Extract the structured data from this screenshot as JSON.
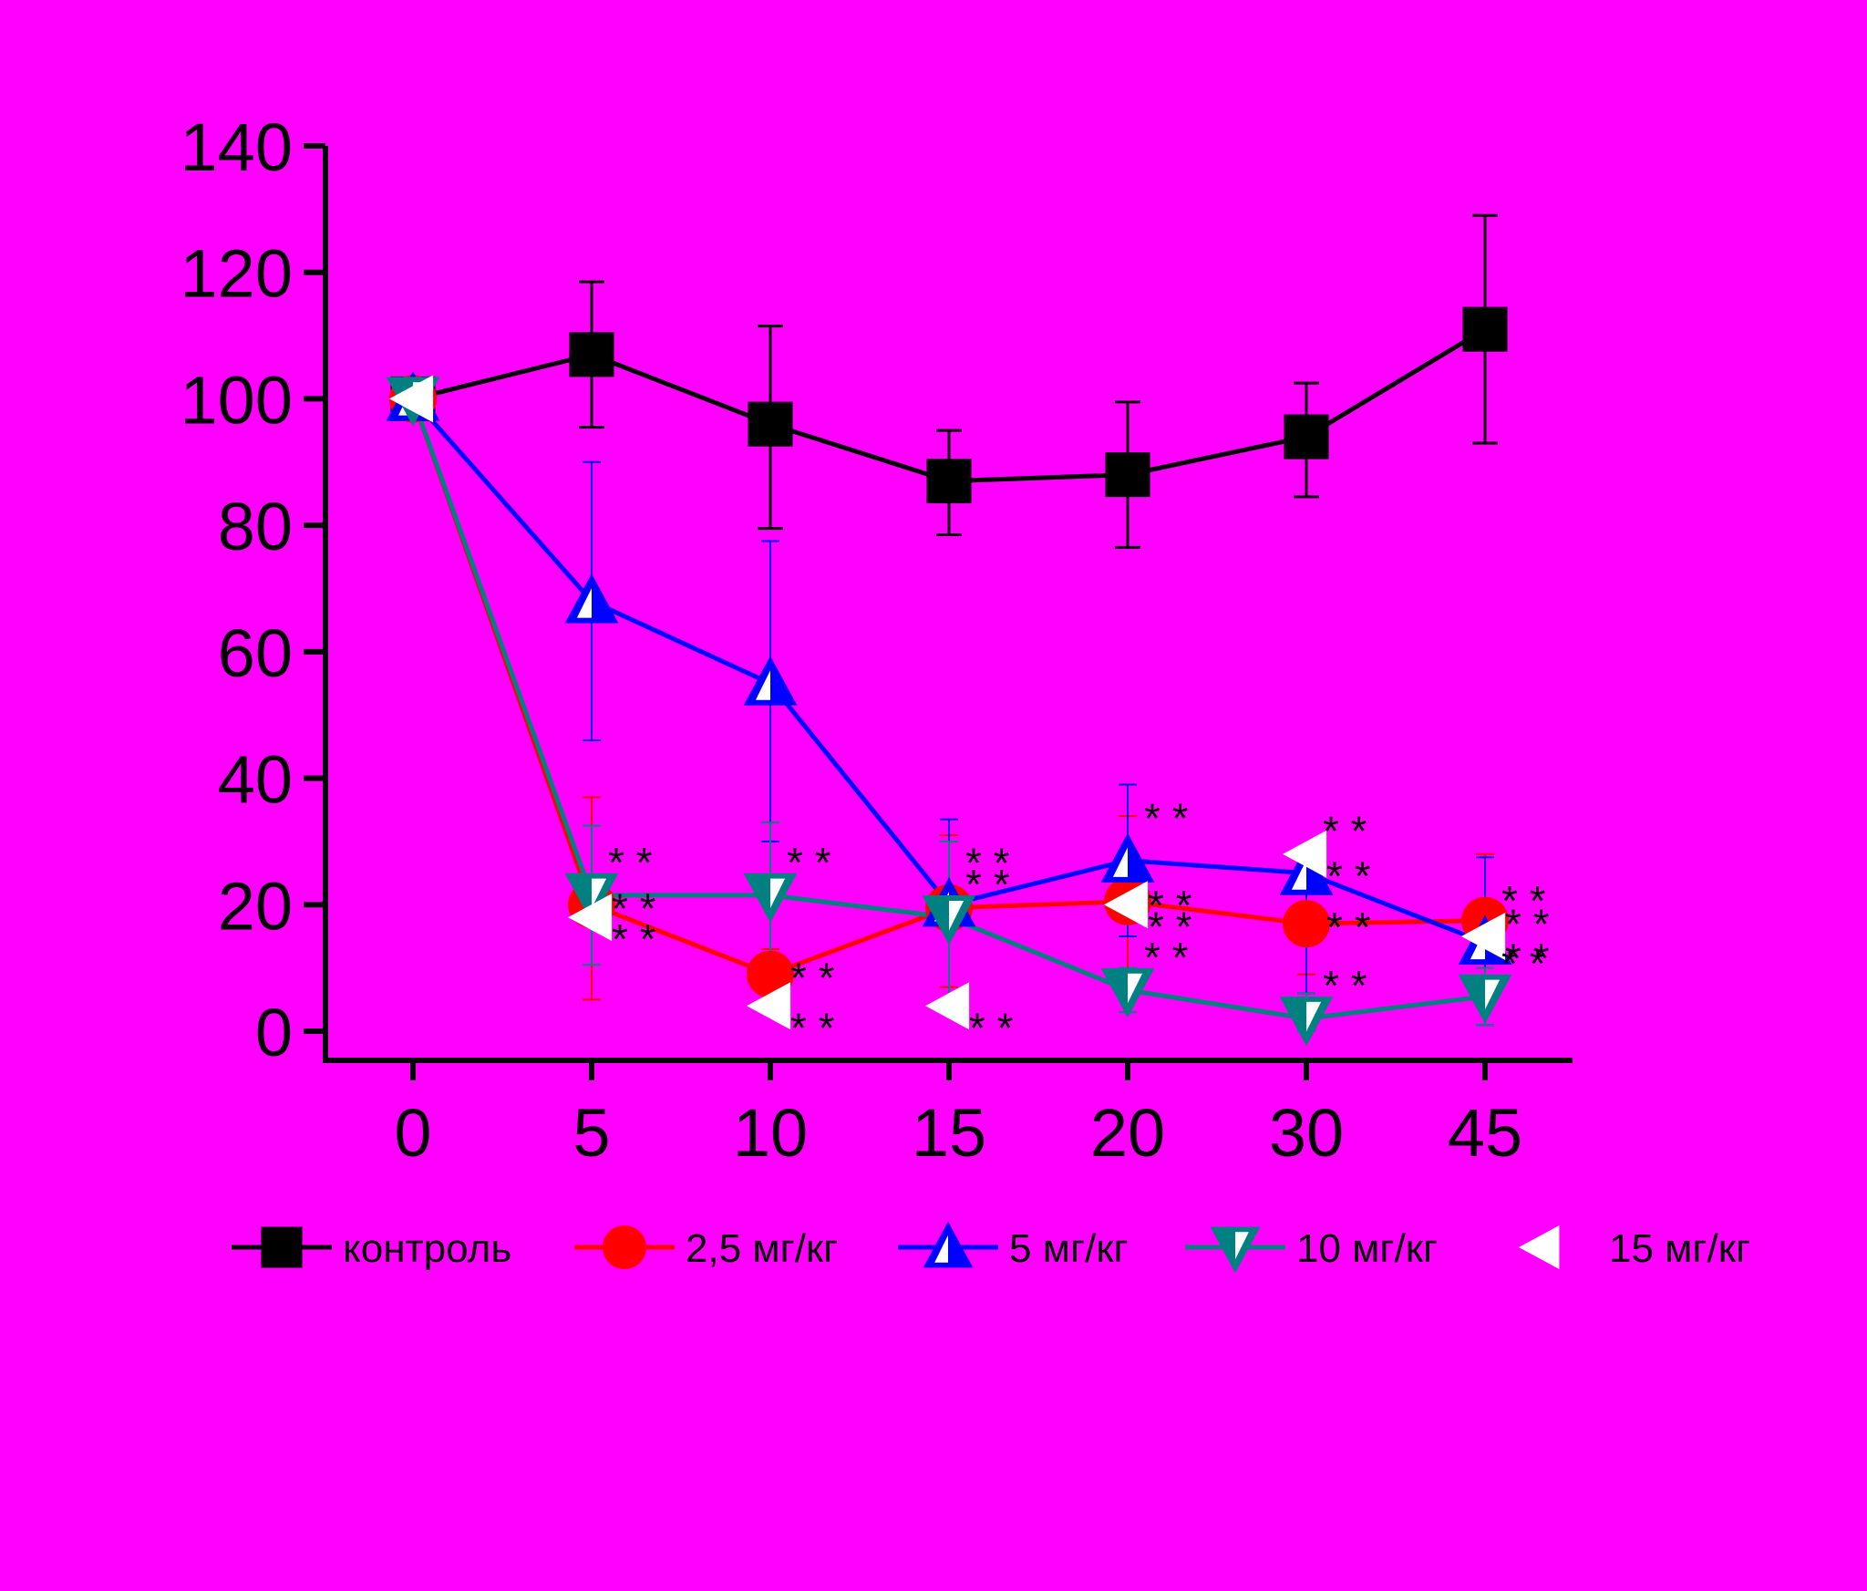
{
  "colors": {
    "background": "#ff00ff",
    "axis": "#000000",
    "control": "#000000",
    "dose_2_5": "#ff0000",
    "dose_5": "#0000ff",
    "dose_10": "#008080",
    "dose_15": "#ffffff"
  },
  "chart_data": {
    "type": "line",
    "title": "",
    "xlabel": "",
    "ylabel": "",
    "categories": [
      "0",
      "5",
      "10",
      "15",
      "20",
      "30",
      "45"
    ],
    "ylim": [
      0,
      140
    ],
    "yticks": [
      0,
      20,
      40,
      60,
      80,
      100,
      120,
      140
    ],
    "grid": false,
    "legend_position": "bottom",
    "significance_symbol": "* *",
    "series": [
      {
        "name": "контроль",
        "color": "#000000",
        "marker": "square",
        "values": [
          100,
          107,
          96,
          87,
          88,
          94,
          111
        ],
        "err_hi": [
          0,
          118.5,
          111.5,
          95,
          99.5,
          102.5,
          129
        ],
        "err_lo": [
          0,
          95.5,
          79.5,
          78.5,
          76.5,
          84.5,
          93
        ],
        "significant": [
          false,
          false,
          false,
          false,
          false,
          false,
          false
        ]
      },
      {
        "name": "2,5 мг/кг",
        "color": "#ff0000",
        "marker": "circle",
        "values": [
          100,
          20,
          9,
          19.5,
          20.5,
          17,
          17.5
        ],
        "err_hi": [
          0,
          37,
          13,
          31,
          34,
          25,
          28
        ],
        "err_lo": [
          0,
          5,
          4,
          7,
          7,
          9,
          7
        ],
        "significant": [
          false,
          true,
          true,
          false,
          true,
          true,
          true
        ]
      },
      {
        "name": "5 мг/кг",
        "color": "#0000ff",
        "marker": "triangle-up",
        "values": [
          100,
          68,
          55,
          20,
          27,
          25,
          14
        ],
        "err_hi": [
          0,
          90,
          77.5,
          33.5,
          39,
          25,
          27.5
        ],
        "err_lo": [
          0,
          46,
          30,
          5,
          15,
          6,
          1
        ],
        "significant": [
          false,
          false,
          false,
          true,
          true,
          true,
          true
        ]
      },
      {
        "name": "10 мг/кг",
        "color": "#008080",
        "marker": "triangle-down",
        "values": [
          100,
          21.5,
          21.5,
          18,
          6.5,
          2,
          5.5
        ],
        "err_hi": [
          0,
          32.5,
          33,
          30,
          10,
          6,
          10
        ],
        "err_lo": [
          0,
          10.5,
          12,
          4,
          3,
          0,
          1
        ],
        "significant": [
          false,
          true,
          true,
          true,
          true,
          true,
          true
        ]
      },
      {
        "name": "15 мг/кг",
        "color": "#ffffff",
        "marker": "triangle-left",
        "values": [
          100,
          18,
          4,
          4,
          20,
          28,
          15
        ],
        "err_hi": [
          0,
          0,
          0,
          0,
          0,
          0,
          0
        ],
        "err_lo": [
          0,
          0,
          0,
          0,
          0,
          0,
          0
        ],
        "significant": [
          false,
          true,
          true,
          true,
          true,
          true,
          true
        ]
      }
    ]
  }
}
